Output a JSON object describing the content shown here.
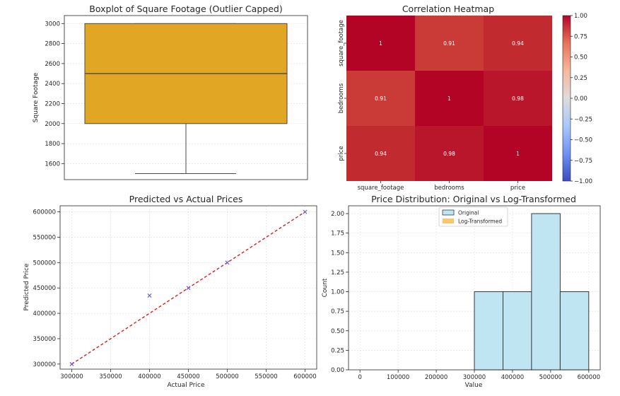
{
  "chart_data": [
    {
      "type": "box",
      "title": "Boxplot of Square Footage (Outlier Capped)",
      "xlabel": "",
      "ylabel": "Square Footage",
      "ylim": [
        1440,
        3080
      ],
      "yticks": [
        1600,
        1800,
        2000,
        2200,
        2400,
        2600,
        2800,
        3000
      ],
      "box": {
        "min": 1500,
        "q1": 2000,
        "median": 2500,
        "q3": 3000,
        "max": 3000
      },
      "box_color": "#e1a624",
      "grid": true
    },
    {
      "type": "heatmap",
      "title": "Correlation Heatmap",
      "labels": [
        "square_footage",
        "bedrooms",
        "price"
      ],
      "matrix": [
        [
          1,
          0.91,
          0.94
        ],
        [
          0.91,
          1,
          0.98
        ],
        [
          0.94,
          0.98,
          1
        ]
      ],
      "cell_text": [
        [
          "1",
          "0.91",
          "0.94"
        ],
        [
          "0.91",
          "1",
          "0.98"
        ],
        [
          "0.94",
          "0.98",
          "1"
        ]
      ],
      "cell_colors": [
        [
          "#b40426",
          "#ca3b37",
          "#c12b30"
        ],
        [
          "#ca3b37",
          "#b40426",
          "#ba162b"
        ],
        [
          "#c12b30",
          "#ba162b",
          "#b40426"
        ]
      ],
      "colorbar": {
        "min": -1,
        "max": 1,
        "ticks": [
          -1,
          -0.75,
          -0.5,
          -0.25,
          0,
          0.25,
          0.5,
          0.75,
          1
        ],
        "tick_labels": [
          "−1.00",
          "−0.75",
          "−0.50",
          "−0.25",
          "0.00",
          "0.25",
          "0.50",
          "0.75",
          "1.00"
        ],
        "stops": [
          "#3b4cc0",
          "#6f92f3",
          "#aac7fd",
          "#dddcdc",
          "#f7b89c",
          "#e7745b",
          "#b40426"
        ]
      }
    },
    {
      "type": "scatter",
      "title": "Predicted vs Actual Prices",
      "xlabel": "Actual Price",
      "ylabel": "Predicted Price",
      "xlim": [
        285000,
        615000
      ],
      "ylim": [
        290000,
        612000
      ],
      "xticks": [
        300000,
        350000,
        400000,
        450000,
        500000,
        550000,
        600000
      ],
      "yticks": [
        300000,
        350000,
        400000,
        450000,
        500000,
        550000,
        600000
      ],
      "points": [
        [
          300000,
          300000
        ],
        [
          400000,
          435000
        ],
        [
          450000,
          450000
        ],
        [
          500000,
          500000
        ],
        [
          600000,
          600000
        ]
      ],
      "marker_color": "#5b5bd6",
      "reference_line": {
        "from": [
          300000,
          300000
        ],
        "to": [
          600000,
          600000
        ],
        "color": "#e01b1b",
        "style": "dashed"
      },
      "grid": true
    },
    {
      "type": "histogram",
      "title": "Price Distribution: Original vs Log-Transformed",
      "xlabel": "Value",
      "ylabel": "Count",
      "xlim": [
        -30000,
        630000
      ],
      "ylim": [
        0,
        2.1
      ],
      "xticks": [
        0,
        100000,
        200000,
        300000,
        400000,
        500000,
        600000
      ],
      "ytick_values": [
        0,
        0.25,
        0.5,
        0.75,
        1,
        1.25,
        1.5,
        1.75,
        2
      ],
      "ytick_labels": [
        "0.00",
        "0.25",
        "0.50",
        "0.75",
        "1.00",
        "1.25",
        "1.50",
        "1.75",
        "2.00"
      ],
      "series": [
        {
          "name": "Original",
          "color": "#bfe4f2",
          "bins": [
            [
              300000,
              375000,
              1
            ],
            [
              375000,
              450000,
              1
            ],
            [
              450000,
              525000,
              2
            ],
            [
              525000,
              600000,
              1
            ]
          ]
        },
        {
          "name": "Log-Transformed",
          "color": "#ffc56a",
          "bins": []
        }
      ],
      "legend": "top-center",
      "grid": true
    }
  ]
}
